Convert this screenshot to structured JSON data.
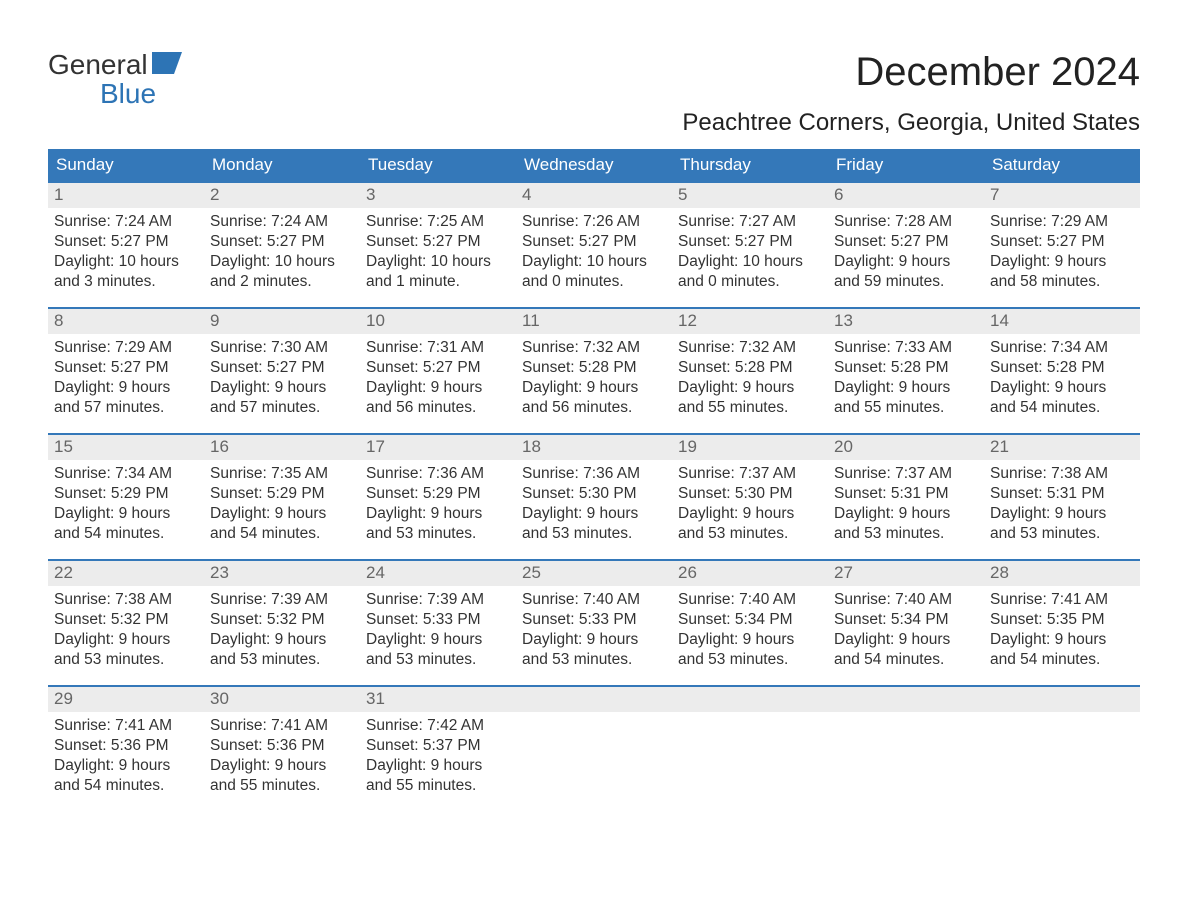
{
  "logo": {
    "top": "General",
    "bottom": "Blue"
  },
  "title": "December 2024",
  "location": "Peachtree Corners, Georgia, United States",
  "accent_color": "#3478b9",
  "daynum_bg": "#ececec",
  "days_of_week": [
    "Sunday",
    "Monday",
    "Tuesday",
    "Wednesday",
    "Thursday",
    "Friday",
    "Saturday"
  ],
  "weeks": [
    [
      {
        "n": "1",
        "sunrise": "Sunrise: 7:24 AM",
        "sunset": "Sunset: 5:27 PM",
        "daylight": "Daylight: 10 hours and 3 minutes."
      },
      {
        "n": "2",
        "sunrise": "Sunrise: 7:24 AM",
        "sunset": "Sunset: 5:27 PM",
        "daylight": "Daylight: 10 hours and 2 minutes."
      },
      {
        "n": "3",
        "sunrise": "Sunrise: 7:25 AM",
        "sunset": "Sunset: 5:27 PM",
        "daylight": "Daylight: 10 hours and 1 minute."
      },
      {
        "n": "4",
        "sunrise": "Sunrise: 7:26 AM",
        "sunset": "Sunset: 5:27 PM",
        "daylight": "Daylight: 10 hours and 0 minutes."
      },
      {
        "n": "5",
        "sunrise": "Sunrise: 7:27 AM",
        "sunset": "Sunset: 5:27 PM",
        "daylight": "Daylight: 10 hours and 0 minutes."
      },
      {
        "n": "6",
        "sunrise": "Sunrise: 7:28 AM",
        "sunset": "Sunset: 5:27 PM",
        "daylight": "Daylight: 9 hours and 59 minutes."
      },
      {
        "n": "7",
        "sunrise": "Sunrise: 7:29 AM",
        "sunset": "Sunset: 5:27 PM",
        "daylight": "Daylight: 9 hours and 58 minutes."
      }
    ],
    [
      {
        "n": "8",
        "sunrise": "Sunrise: 7:29 AM",
        "sunset": "Sunset: 5:27 PM",
        "daylight": "Daylight: 9 hours and 57 minutes."
      },
      {
        "n": "9",
        "sunrise": "Sunrise: 7:30 AM",
        "sunset": "Sunset: 5:27 PM",
        "daylight": "Daylight: 9 hours and 57 minutes."
      },
      {
        "n": "10",
        "sunrise": "Sunrise: 7:31 AM",
        "sunset": "Sunset: 5:27 PM",
        "daylight": "Daylight: 9 hours and 56 minutes."
      },
      {
        "n": "11",
        "sunrise": "Sunrise: 7:32 AM",
        "sunset": "Sunset: 5:28 PM",
        "daylight": "Daylight: 9 hours and 56 minutes."
      },
      {
        "n": "12",
        "sunrise": "Sunrise: 7:32 AM",
        "sunset": "Sunset: 5:28 PM",
        "daylight": "Daylight: 9 hours and 55 minutes."
      },
      {
        "n": "13",
        "sunrise": "Sunrise: 7:33 AM",
        "sunset": "Sunset: 5:28 PM",
        "daylight": "Daylight: 9 hours and 55 minutes."
      },
      {
        "n": "14",
        "sunrise": "Sunrise: 7:34 AM",
        "sunset": "Sunset: 5:28 PM",
        "daylight": "Daylight: 9 hours and 54 minutes."
      }
    ],
    [
      {
        "n": "15",
        "sunrise": "Sunrise: 7:34 AM",
        "sunset": "Sunset: 5:29 PM",
        "daylight": "Daylight: 9 hours and 54 minutes."
      },
      {
        "n": "16",
        "sunrise": "Sunrise: 7:35 AM",
        "sunset": "Sunset: 5:29 PM",
        "daylight": "Daylight: 9 hours and 54 minutes."
      },
      {
        "n": "17",
        "sunrise": "Sunrise: 7:36 AM",
        "sunset": "Sunset: 5:29 PM",
        "daylight": "Daylight: 9 hours and 53 minutes."
      },
      {
        "n": "18",
        "sunrise": "Sunrise: 7:36 AM",
        "sunset": "Sunset: 5:30 PM",
        "daylight": "Daylight: 9 hours and 53 minutes."
      },
      {
        "n": "19",
        "sunrise": "Sunrise: 7:37 AM",
        "sunset": "Sunset: 5:30 PM",
        "daylight": "Daylight: 9 hours and 53 minutes."
      },
      {
        "n": "20",
        "sunrise": "Sunrise: 7:37 AM",
        "sunset": "Sunset: 5:31 PM",
        "daylight": "Daylight: 9 hours and 53 minutes."
      },
      {
        "n": "21",
        "sunrise": "Sunrise: 7:38 AM",
        "sunset": "Sunset: 5:31 PM",
        "daylight": "Daylight: 9 hours and 53 minutes."
      }
    ],
    [
      {
        "n": "22",
        "sunrise": "Sunrise: 7:38 AM",
        "sunset": "Sunset: 5:32 PM",
        "daylight": "Daylight: 9 hours and 53 minutes."
      },
      {
        "n": "23",
        "sunrise": "Sunrise: 7:39 AM",
        "sunset": "Sunset: 5:32 PM",
        "daylight": "Daylight: 9 hours and 53 minutes."
      },
      {
        "n": "24",
        "sunrise": "Sunrise: 7:39 AM",
        "sunset": "Sunset: 5:33 PM",
        "daylight": "Daylight: 9 hours and 53 minutes."
      },
      {
        "n": "25",
        "sunrise": "Sunrise: 7:40 AM",
        "sunset": "Sunset: 5:33 PM",
        "daylight": "Daylight: 9 hours and 53 minutes."
      },
      {
        "n": "26",
        "sunrise": "Sunrise: 7:40 AM",
        "sunset": "Sunset: 5:34 PM",
        "daylight": "Daylight: 9 hours and 53 minutes."
      },
      {
        "n": "27",
        "sunrise": "Sunrise: 7:40 AM",
        "sunset": "Sunset: 5:34 PM",
        "daylight": "Daylight: 9 hours and 54 minutes."
      },
      {
        "n": "28",
        "sunrise": "Sunrise: 7:41 AM",
        "sunset": "Sunset: 5:35 PM",
        "daylight": "Daylight: 9 hours and 54 minutes."
      }
    ],
    [
      {
        "n": "29",
        "sunrise": "Sunrise: 7:41 AM",
        "sunset": "Sunset: 5:36 PM",
        "daylight": "Daylight: 9 hours and 54 minutes."
      },
      {
        "n": "30",
        "sunrise": "Sunrise: 7:41 AM",
        "sunset": "Sunset: 5:36 PM",
        "daylight": "Daylight: 9 hours and 55 minutes."
      },
      {
        "n": "31",
        "sunrise": "Sunrise: 7:42 AM",
        "sunset": "Sunset: 5:37 PM",
        "daylight": "Daylight: 9 hours and 55 minutes."
      },
      null,
      null,
      null,
      null
    ]
  ]
}
